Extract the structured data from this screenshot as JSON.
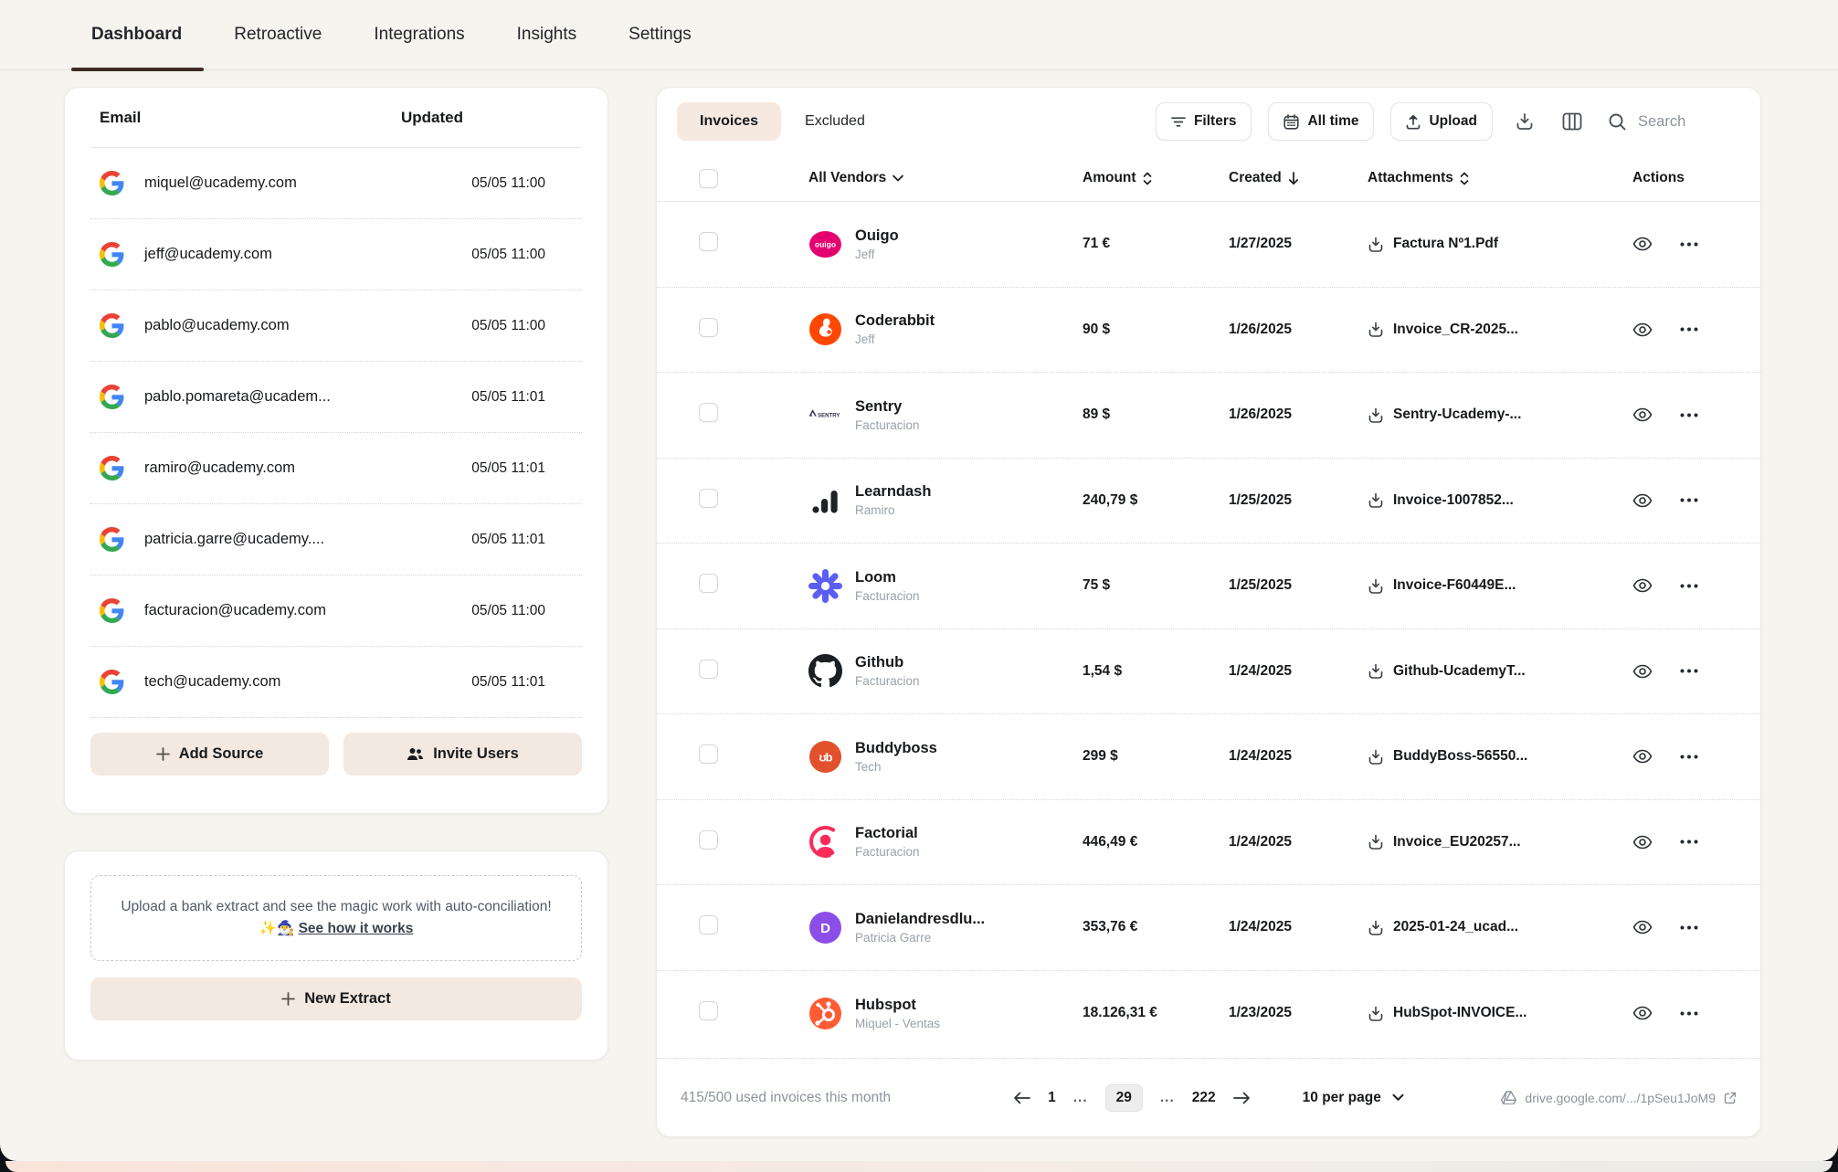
{
  "nav": {
    "tabs": [
      {
        "label": "Dashboard",
        "active": true
      },
      {
        "label": "Retroactive",
        "active": false
      },
      {
        "label": "Integrations",
        "active": false
      },
      {
        "label": "Insights",
        "active": false
      },
      {
        "label": "Settings",
        "active": false
      }
    ]
  },
  "sources": {
    "columns": {
      "email": "Email",
      "updated": "Updated"
    },
    "rows": [
      {
        "email": "miquel@ucademy.com",
        "updated": "05/05 11:00"
      },
      {
        "email": "jeff@ucademy.com",
        "updated": "05/05 11:00"
      },
      {
        "email": "pablo@ucademy.com",
        "updated": "05/05 11:00"
      },
      {
        "email": "pablo.pomareta@ucadem...",
        "updated": "05/05 11:01"
      },
      {
        "email": "ramiro@ucademy.com",
        "updated": "05/05 11:01"
      },
      {
        "email": "patricia.garre@ucademy....",
        "updated": "05/05 11:01"
      },
      {
        "email": "facturacion@ucademy.com",
        "updated": "05/05 11:00"
      },
      {
        "email": "tech@ucademy.com",
        "updated": "05/05 11:01"
      }
    ],
    "add_source_label": "Add Source",
    "invite_users_label": "Invite Users"
  },
  "extract": {
    "message": "Upload a bank extract and see the magic work with auto-conciliation! ✨🧙‍♂️",
    "link_label": "See how it works",
    "button_label": "New Extract"
  },
  "invoices": {
    "tabs": {
      "invoices": "Invoices",
      "excluded": "Excluded"
    },
    "toolbar": {
      "filters": "Filters",
      "all_time": "All time",
      "upload": "Upload",
      "search_placeholder": "Search"
    },
    "columns": {
      "vendors": "All Vendors",
      "amount": "Amount",
      "created": "Created",
      "attachments": "Attachments",
      "actions": "Actions"
    },
    "rows": [
      {
        "vendor": "Ouigo",
        "owner": "Jeff",
        "amount": "71 €",
        "created": "1/27/2025",
        "attachment": "Factura Nº1.Pdf",
        "logo": "ouigo",
        "logo_color": "#e50071"
      },
      {
        "vendor": "Coderabbit",
        "owner": "Jeff",
        "amount": "90 $",
        "created": "1/26/2025",
        "attachment": "Invoice_CR-2025...",
        "logo": "coderabbit",
        "logo_color": "#ff4702"
      },
      {
        "vendor": "Sentry",
        "owner": "Facturacion",
        "amount": "89 $",
        "created": "1/26/2025",
        "attachment": "Sentry-Ucademy-...",
        "logo": "sentry",
        "logo_color": "#362d4a"
      },
      {
        "vendor": "Learndash",
        "owner": "Ramiro",
        "amount": "240,79 $",
        "created": "1/25/2025",
        "attachment": "Invoice-1007852...",
        "logo": "learndash",
        "logo_color": "#1f2328"
      },
      {
        "vendor": "Loom",
        "owner": "Facturacion",
        "amount": "75 $",
        "created": "1/25/2025",
        "attachment": "Invoice-F60449E...",
        "logo": "loom",
        "logo_color": "#5b5ef4"
      },
      {
        "vendor": "Github",
        "owner": "Facturacion",
        "amount": "1,54 $",
        "created": "1/24/2025",
        "attachment": "Github-UcademyT...",
        "logo": "github",
        "logo_color": "#1b1f23"
      },
      {
        "vendor": "Buddyboss",
        "owner": "Tech",
        "amount": "299 $",
        "created": "1/24/2025",
        "attachment": "BuddyBoss-56550...",
        "logo": "buddyboss",
        "logo_color": "#e2502c"
      },
      {
        "vendor": "Factorial",
        "owner": "Facturacion",
        "amount": "446,49 €",
        "created": "1/24/2025",
        "attachment": "Invoice_EU20257...",
        "logo": "factorial",
        "logo_color": "#fa2c5a"
      },
      {
        "vendor": "Danielandresdlu...",
        "owner": "Patricia Garre",
        "amount": "353,76 €",
        "created": "1/24/2025",
        "attachment": "2025-01-24_ucad...",
        "logo": "daniel",
        "logo_color": "#8b4fe8"
      },
      {
        "vendor": "Hubspot",
        "owner": "Miquel - Ventas",
        "amount": "18.126,31 €",
        "created": "1/23/2025",
        "attachment": "HubSpot-INVOICE...",
        "logo": "hubspot",
        "logo_color": "#ff5c35"
      }
    ],
    "footer": {
      "usage": "415/500 used invoices this month",
      "page_first": "1",
      "ellipsis": "...",
      "page_current": "29",
      "page_last": "222",
      "per_page": "10 per page",
      "drive_link": "drive.google.com/.../1pSeu1JoM9"
    }
  },
  "colors": {
    "accent_beige": "#f4e9e1",
    "background_cream": "#f6f4ee",
    "active_underline": "#3c2b24"
  }
}
